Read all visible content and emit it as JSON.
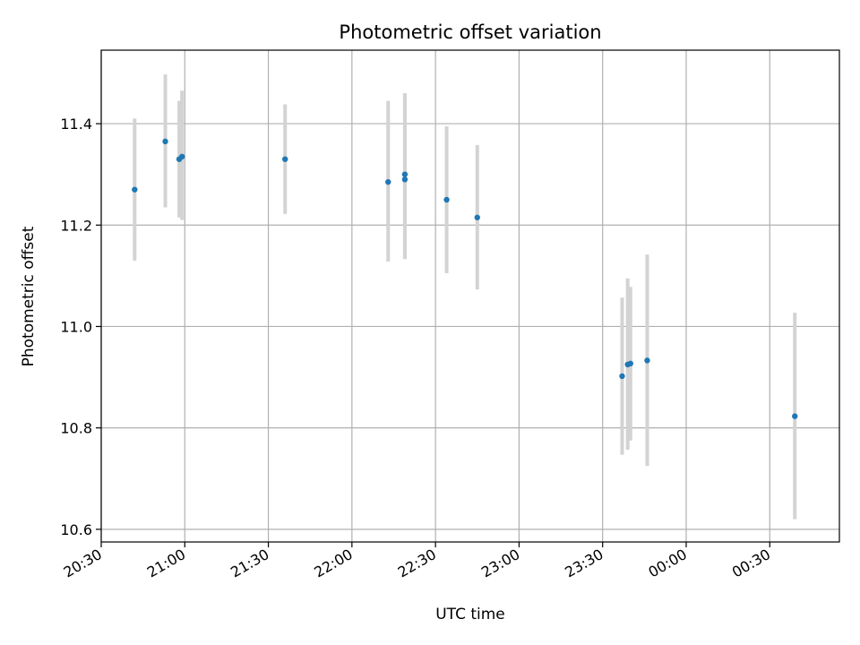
{
  "chart_data": {
    "type": "scatter",
    "title": "Photometric offset variation",
    "xlabel": "UTC time",
    "ylabel": "Photometric offset",
    "xlim": [
      "20:30",
      "00:55"
    ],
    "ylim": [
      10.575,
      11.545
    ],
    "grid": true,
    "x_tick_labels": [
      "20:30",
      "21:00",
      "21:30",
      "22:00",
      "22:30",
      "23:00",
      "23:30",
      "00:00",
      "00:30"
    ],
    "y_ticks": [
      10.6,
      10.8,
      11.0,
      11.2,
      11.4
    ],
    "y_tick_labels": [
      "10.6",
      "10.8",
      "11.0",
      "11.2",
      "11.4"
    ],
    "point_color": "#1f77b4",
    "errorbar_color": "#d3d3d3",
    "points": [
      {
        "x": "20:42",
        "y": 11.27,
        "err_low": 11.13,
        "err_high": 11.41
      },
      {
        "x": "20:53",
        "y": 11.365,
        "err_low": 11.235,
        "err_high": 11.497
      },
      {
        "x": "20:58",
        "y": 11.33,
        "err_low": 11.215,
        "err_high": 11.445
      },
      {
        "x": "20:59",
        "y": 11.335,
        "err_low": 11.21,
        "err_high": 11.465
      },
      {
        "x": "21:36",
        "y": 11.33,
        "err_low": 11.222,
        "err_high": 11.438
      },
      {
        "x": "22:13",
        "y": 11.285,
        "err_low": 11.128,
        "err_high": 11.445
      },
      {
        "x": "22:19",
        "y": 11.3,
        "err_low": 11.133,
        "err_high": 11.46
      },
      {
        "x": "22:19",
        "y": 11.29,
        "err_low": 11.133,
        "err_high": 11.46
      },
      {
        "x": "22:34",
        "y": 11.25,
        "err_low": 11.105,
        "err_high": 11.395
      },
      {
        "x": "22:45",
        "y": 11.215,
        "err_low": 11.073,
        "err_high": 11.358
      },
      {
        "x": "23:37",
        "y": 10.902,
        "err_low": 10.747,
        "err_high": 11.057
      },
      {
        "x": "23:39",
        "y": 10.925,
        "err_low": 10.757,
        "err_high": 11.095
      },
      {
        "x": "23:40",
        "y": 10.927,
        "err_low": 10.775,
        "err_high": 11.078
      },
      {
        "x": "23:46",
        "y": 10.933,
        "err_low": 10.725,
        "err_high": 11.142
      },
      {
        "x": "00:39",
        "y": 10.823,
        "err_low": 10.62,
        "err_high": 11.027
      }
    ]
  }
}
